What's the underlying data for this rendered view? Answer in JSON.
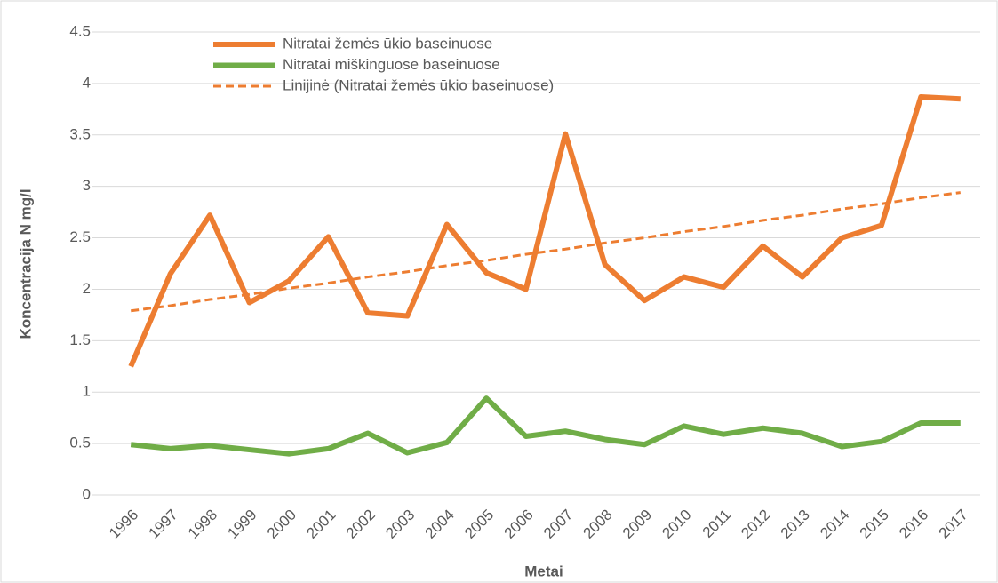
{
  "chart_data": {
    "type": "line",
    "x_label": "Metai",
    "y_label": "Koncentracija N mg/l",
    "categories": [
      "1996",
      "1997",
      "1998",
      "1999",
      "2000",
      "2001",
      "2002",
      "2003",
      "2004",
      "2005",
      "2006",
      "2007",
      "2008",
      "2009",
      "2010",
      "2011",
      "2012",
      "2013",
      "2014",
      "2015",
      "2016",
      "2017"
    ],
    "series": [
      {
        "name": "Nitratai žemės ūkio baseinuose",
        "color": "#ed7d31",
        "style": "solid",
        "values": [
          1.25,
          2.15,
          2.72,
          1.87,
          2.08,
          2.51,
          1.77,
          1.74,
          2.63,
          2.16,
          2.0,
          3.51,
          2.24,
          1.89,
          2.12,
          2.02,
          2.42,
          2.12,
          2.5,
          2.62,
          3.87,
          3.85
        ]
      },
      {
        "name": "Nitratai miškinguose baseinuose",
        "color": "#70ad47",
        "style": "solid",
        "values": [
          0.49,
          0.45,
          0.48,
          0.44,
          0.4,
          0.45,
          0.6,
          0.41,
          0.51,
          0.94,
          0.57,
          0.62,
          0.54,
          0.49,
          0.67,
          0.59,
          0.65,
          0.6,
          0.47,
          0.52,
          0.7,
          0.7
        ]
      },
      {
        "name": "Linijinė (Nitratai žemės ūkio baseinuose)",
        "color": "#ed7d31",
        "style": "dashed",
        "values": [
          1.79,
          1.84,
          1.9,
          1.95,
          2.01,
          2.06,
          2.12,
          2.17,
          2.23,
          2.28,
          2.34,
          2.39,
          2.45,
          2.5,
          2.56,
          2.61,
          2.67,
          2.72,
          2.78,
          2.83,
          2.89,
          2.94
        ]
      }
    ],
    "ylim": [
      0,
      4.5
    ],
    "yticks": [
      0,
      0.5,
      1,
      1.5,
      2,
      2.5,
      3,
      3.5,
      4,
      4.5
    ],
    "grid": true,
    "legend": "upper-left"
  }
}
